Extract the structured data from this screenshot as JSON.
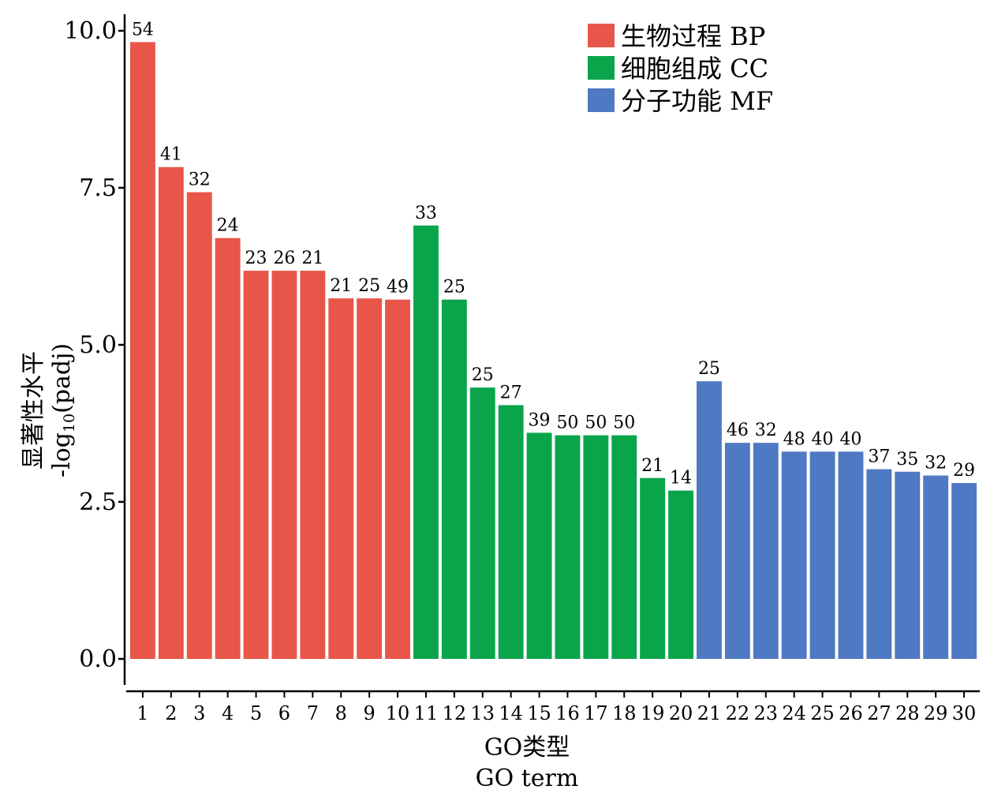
{
  "chart_data": {
    "type": "bar",
    "categories": [
      "1",
      "2",
      "3",
      "4",
      "5",
      "6",
      "7",
      "8",
      "9",
      "10",
      "11",
      "12",
      "13",
      "14",
      "15",
      "16",
      "17",
      "18",
      "19",
      "20",
      "21",
      "22",
      "23",
      "24",
      "25",
      "26",
      "27",
      "28",
      "29",
      "30"
    ],
    "values": [
      9.82,
      7.83,
      7.43,
      6.7,
      6.18,
      6.18,
      6.18,
      5.74,
      5.74,
      5.72,
      6.9,
      5.72,
      4.32,
      4.04,
      3.6,
      3.56,
      3.56,
      3.56,
      2.88,
      2.68,
      4.42,
      3.44,
      3.44,
      3.3,
      3.3,
      3.3,
      3.02,
      2.98,
      2.92,
      2.8
    ],
    "counts": [
      "54",
      "41",
      "32",
      "24",
      "23",
      "26",
      "21",
      "21",
      "25",
      "49",
      "33",
      "25",
      "25",
      "27",
      "39",
      "50",
      "50",
      "50",
      "21",
      "14",
      "25",
      "46",
      "32",
      "48",
      "40",
      "40",
      "37",
      "35",
      "32",
      "29"
    ],
    "groups": [
      "BP",
      "BP",
      "BP",
      "BP",
      "BP",
      "BP",
      "BP",
      "BP",
      "BP",
      "BP",
      "CC",
      "CC",
      "CC",
      "CC",
      "CC",
      "CC",
      "CC",
      "CC",
      "CC",
      "CC",
      "MF",
      "MF",
      "MF",
      "MF",
      "MF",
      "MF",
      "MF",
      "MF",
      "MF",
      "MF"
    ],
    "series": [
      {
        "key": "BP",
        "name": "生物过程 BP",
        "color": "#e8564a"
      },
      {
        "key": "CC",
        "name": "细胞组成 CC",
        "color": "#0aa54a"
      },
      {
        "key": "MF",
        "name": "分子功能 MF",
        "color": "#4f79c2"
      }
    ],
    "ylim": [
      0,
      10.2
    ],
    "yticks": [
      "0.0",
      "2.5",
      "5.0",
      "7.5",
      "10.0"
    ],
    "ytick_values": [
      0,
      2.5,
      5.0,
      7.5,
      10.0
    ],
    "ylabel_line1": "显著性水平",
    "ylabel_line2_prefix": "-log",
    "ylabel_line2_sub": "10",
    "ylabel_line2_suffix": "(padj)",
    "xlabel_line1": "GO类型",
    "xlabel_line2": "GO term",
    "legend_position": "top-right",
    "grid": false
  }
}
